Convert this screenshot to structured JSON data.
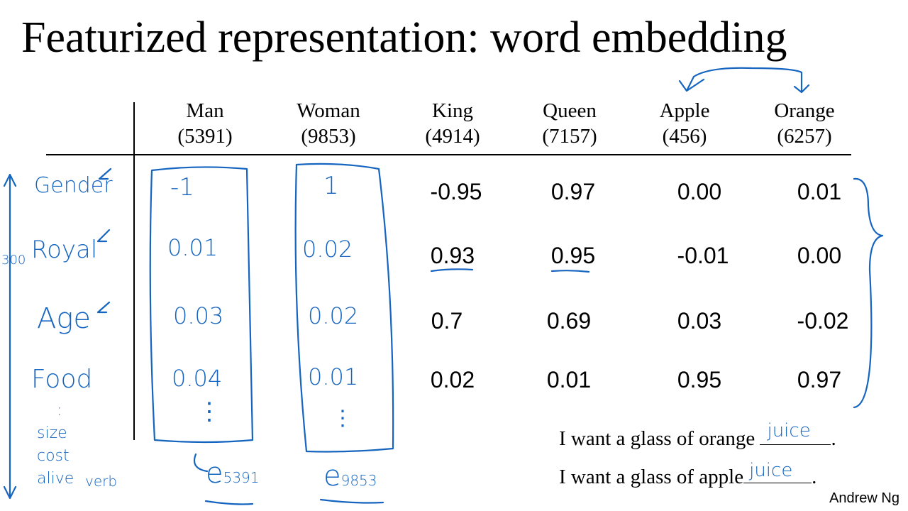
{
  "title": "Featurized representation: word embedding",
  "columns": [
    {
      "word": "Man",
      "index": "(5391)"
    },
    {
      "word": "Woman",
      "index": "(9853)"
    },
    {
      "word": "King",
      "index": "(4914)"
    },
    {
      "word": "Queen",
      "index": "(7157)"
    },
    {
      "word": "Apple",
      "index": "(456)"
    },
    {
      "word": "Orange",
      "index": "(6257)"
    }
  ],
  "features": {
    "gender": "Gender",
    "royal": "Royal",
    "age": "Age",
    "food": "Food",
    "dots": ":",
    "size": "size",
    "cost": "cost",
    "alive": "alive",
    "verb": "verb",
    "dim": "300"
  },
  "man_values": {
    "gender": "-1",
    "royal": "0.01",
    "age": "0.03",
    "food": "0.04",
    "dots": "⋮"
  },
  "woman_values": {
    "gender": "1",
    "royal": "0.02",
    "age": "0.02",
    "food": "0.01",
    "dots": "⋮"
  },
  "rows": [
    [
      "-0.95",
      "0.97",
      "0.00",
      "0.01"
    ],
    [
      "0.93",
      "0.95",
      "-0.01",
      "0.00"
    ],
    [
      "0.7",
      "0.69",
      "0.03",
      "-0.02"
    ],
    [
      "0.02",
      "0.01",
      "0.95",
      "0.97"
    ]
  ],
  "embed_labels": {
    "man": "e",
    "man_sub": "5391",
    "woman": "e",
    "woman_sub": "9853"
  },
  "sentences": [
    {
      "text": "I want a glass of orange ",
      "fill": "juice",
      "end": "."
    },
    {
      "text": "I want a glass of apple",
      "fill": "juice",
      "end": "."
    }
  ],
  "credit": "Andrew Ng"
}
